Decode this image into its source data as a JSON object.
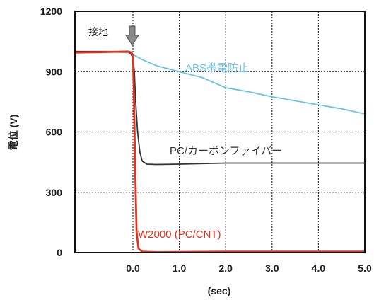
{
  "chart_data": {
    "type": "line",
    "title": "",
    "xlabel": "(sec)",
    "ylabel": "電位 (V)",
    "xlim": [
      -1.25,
      5.0
    ],
    "ylim": [
      0,
      1200
    ],
    "x_ticks": [
      "0.0",
      "1.0",
      "2.0",
      "3.0",
      "4.0",
      "5.0"
    ],
    "x_tick_values": [
      0,
      1,
      2,
      3,
      4,
      5
    ],
    "y_ticks": [
      "0",
      "300",
      "600",
      "900",
      "1200"
    ],
    "y_tick_values": [
      0,
      300,
      600,
      900,
      1200
    ],
    "grid": true,
    "annotation": {
      "text": "接地",
      "x": 0.0,
      "marker": "arrow-down"
    },
    "series": [
      {
        "name": "ABS帯電防止",
        "color": "#6cc3e6",
        "x": [
          -1.25,
          -0.5,
          -0.1,
          0.0,
          0.2,
          0.5,
          1.0,
          1.5,
          2.0,
          2.5,
          3.0,
          3.5,
          4.0,
          4.5,
          5.0
        ],
        "y": [
          1000,
          998,
          995,
          985,
          960,
          930,
          900,
          870,
          820,
          800,
          775,
          755,
          735,
          715,
          690
        ]
      },
      {
        "name": "PC/カーボンファイバー",
        "color": "#333333",
        "x": [
          -1.25,
          -0.5,
          -0.1,
          -0.05,
          0.0,
          0.03,
          0.06,
          0.1,
          0.15,
          0.2,
          0.3,
          0.5,
          1.0,
          2.0,
          3.0,
          4.0,
          5.0
        ],
        "y": [
          1000,
          1000,
          998,
          990,
          970,
          900,
          750,
          600,
          500,
          455,
          440,
          438,
          440,
          445,
          445,
          445,
          445
        ]
      },
      {
        "name": "W2000 (PC/CNT)",
        "color": "#e8321e",
        "x": [
          -1.25,
          -0.5,
          -0.1,
          -0.03,
          0.0,
          0.02,
          0.05,
          0.08,
          0.12,
          0.2,
          0.5,
          1.0,
          2.0,
          3.0,
          4.0,
          5.0
        ],
        "y": [
          995,
          998,
          1000,
          995,
          980,
          800,
          400,
          100,
          20,
          5,
          2,
          3,
          5,
          5,
          5,
          5
        ]
      }
    ]
  }
}
